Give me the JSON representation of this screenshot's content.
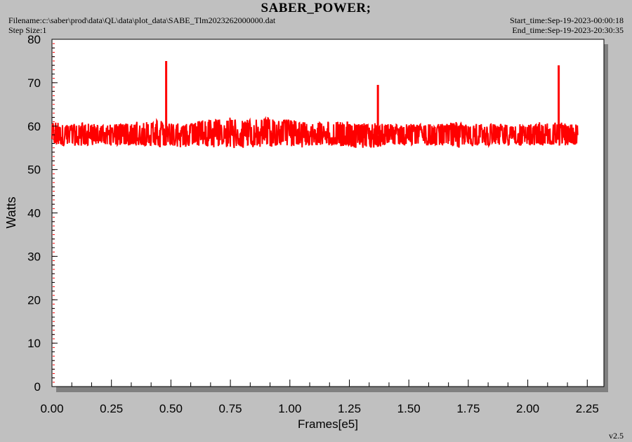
{
  "header": {
    "title": "SABER_POWER;",
    "filename": "Filename:c:\\saber\\prod\\data\\QL\\data\\plot_data\\SABE_Tlm2023262000000.dat",
    "step_size": "Step Size:1",
    "start_time": "Start_time:Sep-19-2023-00:00:18",
    "end_time": "End_time:Sep-19-2023-20:30:35"
  },
  "version": "v2.5",
  "chart_data": {
    "type": "line",
    "title": "SABER_POWER;",
    "xlabel": "Frames[e5]",
    "ylabel": "Watts",
    "xlim": [
      0.0,
      2.32
    ],
    "ylim": [
      0,
      80
    ],
    "x_ticks": [
      "0.00",
      "0.25",
      "0.50",
      "0.75",
      "1.00",
      "1.25",
      "1.50",
      "1.75",
      "2.00",
      "2.25"
    ],
    "y_ticks": [
      "0",
      "10",
      "20",
      "30",
      "40",
      "50",
      "60",
      "70",
      "80"
    ],
    "series_color": "#ff0000",
    "series": [
      {
        "x_range": [
          0.0,
          2.21
        ],
        "band_min": 55.5,
        "band_max": 60.5,
        "typical": 58,
        "noise_envelope": [
          [
            0.0,
            55.5,
            61.5
          ],
          [
            0.05,
            55.5,
            60.5
          ],
          [
            0.1,
            55.5,
            60.5
          ],
          [
            0.15,
            55.5,
            61.0
          ],
          [
            0.2,
            56.0,
            60.0
          ],
          [
            0.25,
            55.5,
            60.5
          ],
          [
            0.3,
            55.5,
            60.5
          ],
          [
            0.35,
            55.5,
            61.0
          ],
          [
            0.4,
            55.5,
            61.0
          ],
          [
            0.45,
            55.0,
            61.5
          ],
          [
            0.5,
            55.5,
            61.0
          ],
          [
            0.55,
            55.0,
            60.5
          ],
          [
            0.6,
            55.5,
            61.0
          ],
          [
            0.65,
            55.0,
            61.5
          ],
          [
            0.7,
            55.0,
            61.5
          ],
          [
            0.75,
            54.5,
            62.0
          ],
          [
            0.8,
            55.0,
            61.5
          ],
          [
            0.85,
            55.0,
            61.5
          ],
          [
            0.9,
            55.0,
            62.0
          ],
          [
            0.95,
            55.5,
            61.5
          ],
          [
            1.0,
            55.0,
            61.5
          ],
          [
            1.05,
            55.0,
            61.0
          ],
          [
            1.1,
            55.5,
            61.0
          ],
          [
            1.15,
            55.5,
            61.0
          ],
          [
            1.2,
            55.5,
            61.0
          ],
          [
            1.25,
            55.0,
            61.0
          ],
          [
            1.3,
            55.0,
            60.5
          ],
          [
            1.35,
            55.0,
            61.0
          ],
          [
            1.4,
            55.5,
            60.5
          ],
          [
            1.45,
            55.5,
            60.5
          ],
          [
            1.5,
            55.5,
            60.5
          ],
          [
            1.55,
            55.5,
            60.5
          ],
          [
            1.6,
            55.5,
            60.5
          ],
          [
            1.65,
            55.5,
            60.5
          ],
          [
            1.7,
            55.0,
            61.0
          ],
          [
            1.75,
            55.5,
            60.5
          ],
          [
            1.8,
            55.5,
            60.5
          ],
          [
            1.85,
            55.5,
            60.5
          ],
          [
            1.9,
            55.5,
            60.5
          ],
          [
            1.95,
            55.5,
            60.5
          ],
          [
            2.0,
            55.5,
            60.5
          ],
          [
            2.05,
            55.5,
            61.0
          ],
          [
            2.1,
            55.5,
            61.0
          ],
          [
            2.15,
            55.5,
            61.0
          ],
          [
            2.21,
            55.5,
            60.5
          ]
        ],
        "spikes": [
          {
            "x": 0.48,
            "y": 75
          },
          {
            "x": 1.37,
            "y": 69.5
          },
          {
            "x": 2.13,
            "y": 74
          }
        ]
      }
    ]
  }
}
